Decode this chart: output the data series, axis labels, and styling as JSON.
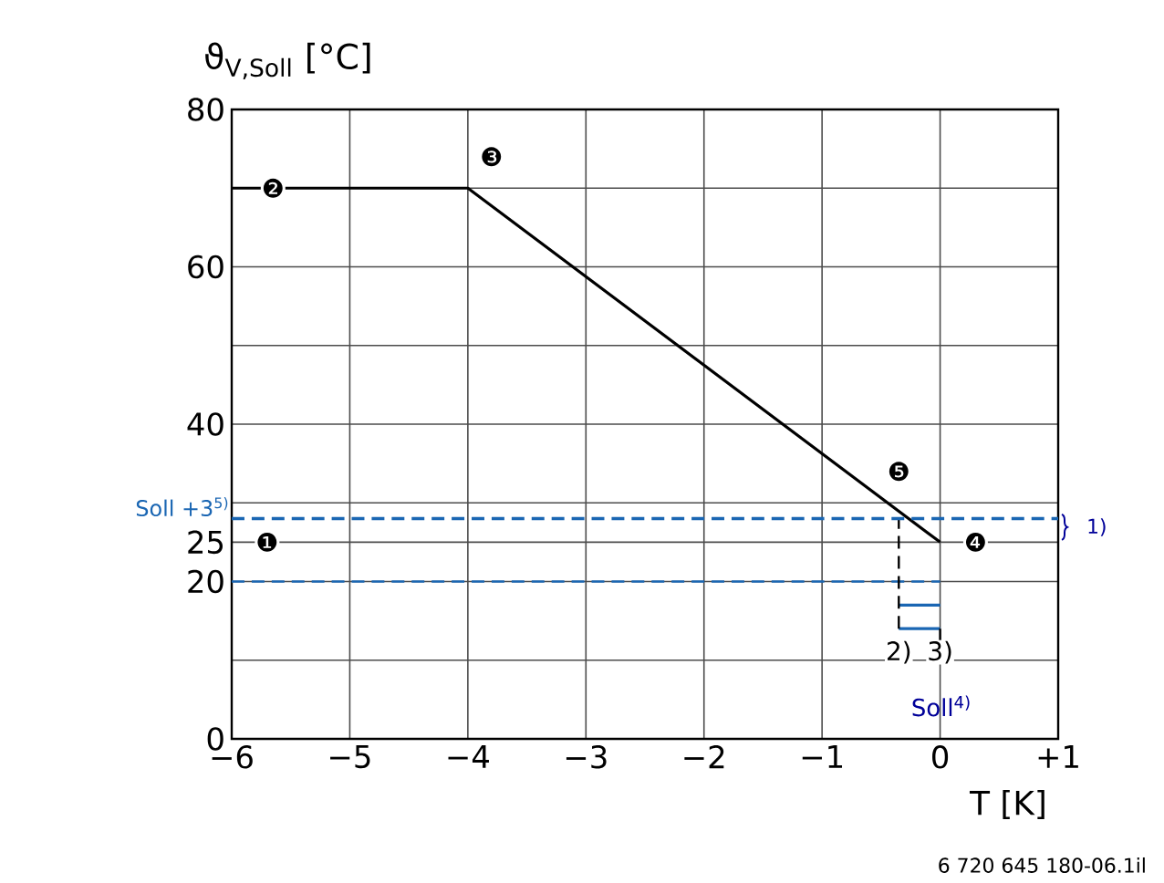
{
  "chart_data": {
    "type": "line",
    "ylabel": "ϑ$_{V,Soll}$ [°C]",
    "xlabel": "T [K]",
    "xlim": [
      -6,
      1
    ],
    "ylim": [
      0,
      80
    ],
    "xticks": [
      {
        "value": -6,
        "label": "−6"
      },
      {
        "value": -5,
        "label": "−5"
      },
      {
        "value": -4,
        "label": "−4"
      },
      {
        "value": -3,
        "label": "−3"
      },
      {
        "value": -2,
        "label": "−2"
      },
      {
        "value": -1,
        "label": "−1"
      },
      0,
      {
        "value": 1,
        "label": "+1"
      }
    ],
    "yticks": [
      0,
      {
        "value": 10,
        "label": null
      },
      20,
      25,
      {
        "value": 30,
        "label": null
      },
      40,
      {
        "value": 50,
        "label": null
      },
      60,
      {
        "value": 70,
        "label": null
      },
      80
    ],
    "grid": true,
    "series": [
      {
        "x": [
          -6,
          -4,
          0
        ],
        "values": [
          70,
          70,
          25
        ],
        "color": "#000000",
        "line_style": "solid"
      },
      {
        "x": [
          -6,
          0
        ],
        "values": [
          20,
          20
        ],
        "color": "#1a66b3",
        "line_style": "dashed"
      },
      {
        "x": [
          -0.35,
          0
        ],
        "values": [
          17,
          17
        ],
        "color": "#1a66b3",
        "line_style": "solid"
      },
      {
        "x": [
          0,
          -0.35
        ],
        "values": [
          14,
          14
        ],
        "color": "#1a66b3",
        "line_style": "solid"
      },
      {
        "x": [
          -0.35,
          -0.35
        ],
        "values": [
          14,
          28
        ],
        "color": "#000000",
        "line_style": "dashed"
      },
      {
        "x": [
          0,
          0
        ],
        "values": [
          14,
          9
        ],
        "color": "#000000",
        "line_style": "dashed"
      }
    ],
    "ref_lines": [
      {
        "axis": "y",
        "value": 28,
        "label": "Soll +3$^{5)}$",
        "color": "#1a66b3",
        "line_style": "dashed"
      }
    ],
    "annotations": [
      {
        "text": "❶",
        "x": -5.7,
        "y": 25
      },
      {
        "text": "❷",
        "x": -5.65,
        "y": 70
      },
      {
        "text": "❸",
        "x": -3.8,
        "y": 74
      },
      {
        "text": "❹",
        "x": 0.3,
        "y": 25
      },
      {
        "text": "❺",
        "x": -0.35,
        "y": 34
      },
      {
        "text": "2)",
        "x": -0.35,
        "y": 11
      },
      {
        "text": "3)",
        "x": 0,
        "y": 11
      },
      "1)",
      "Soll$^{4)}$",
      "6 720 645 180-06.1il"
    ]
  }
}
